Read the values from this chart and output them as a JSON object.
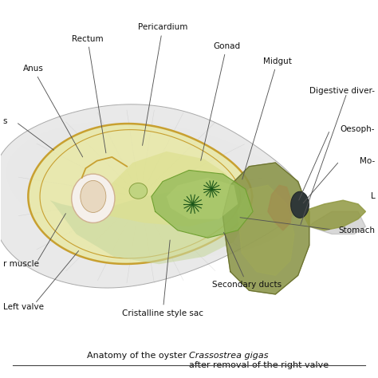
{
  "background_color": "#ffffff",
  "caption_normal": "Anatomy of the oyster ",
  "caption_italic": "Crassostrea gigas",
  "caption_suffix": " after removal of the right valve",
  "shell_fill": "#e8e8e8",
  "shell_edge": "#aaaaaa",
  "mantle_fill": "#e8e8a8",
  "mantle_edge": "#c8a030",
  "body_fill": "#e8e8a0",
  "gill_fill": "#90b855",
  "gill_edge": "#70a030",
  "muscle_fill": "#f5f0eb",
  "muscle_edge": "#d0b090",
  "digestive_fill": "#8a9448",
  "digestive_edge": "#6a7030",
  "mouth_fill": "#303838",
  "shadow_color": "#b0b0b0",
  "line_color": "#555555",
  "text_color": "#111111",
  "annotation_fontsize": 7.5,
  "caption_fontsize": 8.0
}
